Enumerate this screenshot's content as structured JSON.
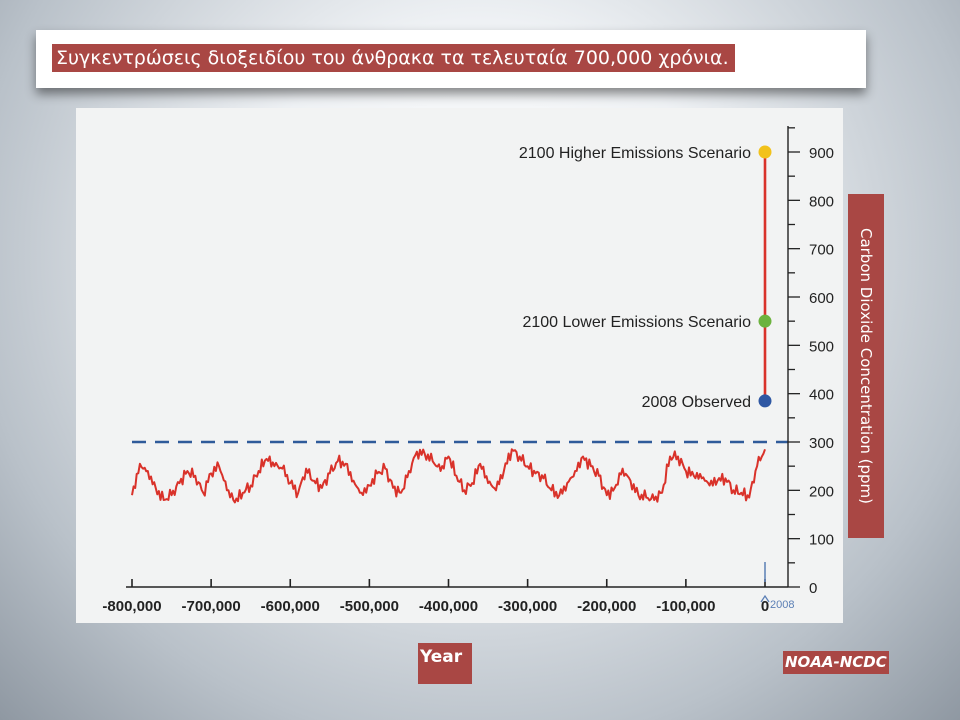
{
  "slide": {
    "title": "Συγκεντρώσεις διοξειδίου του άνθρακα τα τελευταία 700,000 χρόνια.",
    "source": "NOAA-NCDC"
  },
  "chart_data": {
    "type": "line",
    "xlabel": "Year",
    "ylabel": "Carbon Dioxide Concentration  (ppm)",
    "xlim": [
      -800000,
      0
    ],
    "ylim": [
      0,
      900
    ],
    "x_ticks": [
      -800000,
      -700000,
      -600000,
      -500000,
      -400000,
      -300000,
      -200000,
      -100000,
      0
    ],
    "x_tick_labels": [
      "-800,000",
      "-700,000",
      "-600,000",
      "-500,000",
      "-400,000",
      "-300,000",
      "-200,000",
      "-100,000",
      "0"
    ],
    "y_ticks": [
      0,
      100,
      200,
      300,
      400,
      500,
      600,
      700,
      800,
      900
    ],
    "y_tick_labels": [
      "0",
      "100",
      "200",
      "300",
      "400",
      "500",
      "600",
      "700",
      "800",
      "900"
    ],
    "reference_line": {
      "y": 300,
      "style": "dashed",
      "color": "#2f5b9a"
    },
    "x_annotation": {
      "x": 0,
      "label": "2008"
    },
    "series": [
      {
        "color": "#d9322a",
        "x": [
          -800000,
          -790000,
          -780000,
          -770000,
          -760000,
          -750000,
          -740000,
          -730000,
          -720000,
          -710000,
          -700000,
          -690000,
          -680000,
          -670000,
          -660000,
          -650000,
          -640000,
          -630000,
          -620000,
          -610000,
          -600000,
          -590000,
          -580000,
          -570000,
          -560000,
          -550000,
          -540000,
          -530000,
          -520000,
          -510000,
          -500000,
          -490000,
          -480000,
          -470000,
          -460000,
          -450000,
          -440000,
          -430000,
          -420000,
          -410000,
          -400000,
          -390000,
          -380000,
          -370000,
          -360000,
          -350000,
          -340000,
          -330000,
          -320000,
          -310000,
          -300000,
          -290000,
          -280000,
          -270000,
          -260000,
          -250000,
          -240000,
          -230000,
          -220000,
          -210000,
          -200000,
          -190000,
          -180000,
          -170000,
          -160000,
          -150000,
          -140000,
          -130000,
          -120000,
          -110000,
          -100000,
          -90000,
          -80000,
          -70000,
          -60000,
          -50000,
          -40000,
          -30000,
          -20000,
          -10000,
          0
        ],
        "values": [
          190,
          255,
          240,
          205,
          180,
          190,
          215,
          240,
          230,
          195,
          235,
          250,
          200,
          175,
          195,
          210,
          240,
          265,
          250,
          245,
          215,
          195,
          245,
          220,
          205,
          235,
          260,
          255,
          220,
          195,
          210,
          235,
          245,
          205,
          195,
          240,
          280,
          275,
          260,
          240,
          270,
          230,
          200,
          215,
          255,
          215,
          200,
          240,
          285,
          270,
          250,
          235,
          225,
          200,
          190,
          215,
          240,
          270,
          250,
          230,
          190,
          205,
          245,
          220,
          190,
          185,
          180,
          195,
          270,
          270,
          240,
          230,
          225,
          210,
          220,
          225,
          200,
          195,
          185,
          250,
          285
        ]
      },
      {
        "name": "projection",
        "color": "#d9322a",
        "x": [
          0,
          0
        ],
        "values": [
          385,
          900
        ]
      }
    ],
    "points": [
      {
        "label": "2100 Higher Emissions Scenario",
        "x": 0,
        "y": 900,
        "color": "#f2c21b"
      },
      {
        "label": "2100 Lower Emissions Scenario",
        "x": 0,
        "y": 550,
        "color": "#6cb33e"
      },
      {
        "label": "2008 Observed",
        "x": 0,
        "y": 385,
        "color": "#2e57a3"
      }
    ],
    "grid": false
  }
}
